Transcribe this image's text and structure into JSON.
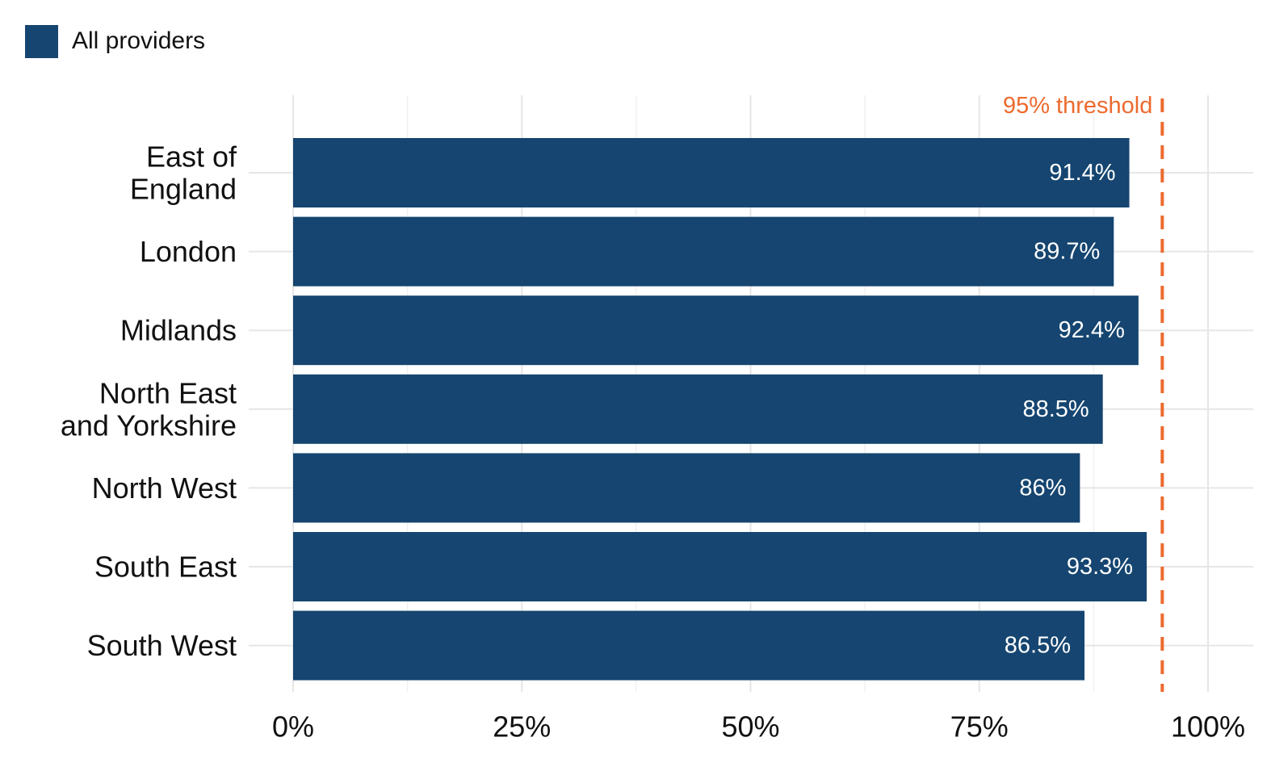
{
  "legend": {
    "label": "All providers",
    "color": "#154570"
  },
  "chart_data": {
    "type": "bar",
    "orientation": "horizontal",
    "categories": [
      "East of England",
      "London",
      "Midlands",
      "North East and Yorkshire",
      "North West",
      "South East",
      "South West"
    ],
    "series": [
      {
        "name": "All providers",
        "values": [
          91.4,
          89.7,
          92.4,
          88.5,
          86,
          93.3,
          86.5
        ],
        "labels": [
          "91.4%",
          "89.7%",
          "92.4%",
          "88.5%",
          "86%",
          "93.3%",
          "86.5%"
        ],
        "color": "#154570"
      }
    ],
    "xlim": [
      0,
      100
    ],
    "xticks": [
      0,
      25,
      50,
      75,
      100
    ],
    "xtick_labels": [
      "0%",
      "25%",
      "50%",
      "75%",
      "100%"
    ],
    "title": "",
    "xlabel": "",
    "ylabel": "",
    "grid": true,
    "legend_position": "top-left",
    "reference_line": {
      "value": 95,
      "label": "95% threshold",
      "style": "dashed",
      "color": "#ED6A2E"
    }
  }
}
